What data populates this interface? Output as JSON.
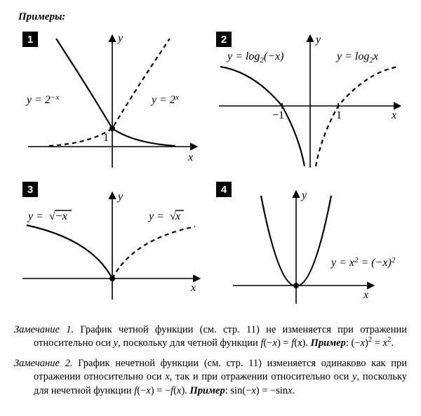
{
  "header": "Примеры:",
  "colors": {
    "fg": "#000000",
    "bg": "#ffffff"
  },
  "panels": {
    "p1": {
      "num": "1",
      "left_label": "y = 2<tspan baseline-shift='5' font-size='11'>−x</tspan>",
      "right_label": "y = 2<tspan baseline-shift='5' font-size='11'>x</tspan>",
      "y_axis": "y",
      "x_axis": "x",
      "tick": "1"
    },
    "p2": {
      "num": "2",
      "left_label": "y = log<tspan baseline-shift='-4' font-size='11'>2</tspan>(−x)",
      "right_label": "y = log<tspan baseline-shift='-4' font-size='11'>2</tspan>x",
      "y_axis": "y",
      "x_axis": "x",
      "tick_neg": "−1",
      "tick_pos": "1"
    },
    "p3": {
      "num": "3",
      "left_label": "y = √−x",
      "right_label": "y = √x",
      "y_axis": "y",
      "x_axis": "x"
    },
    "p4": {
      "num": "4",
      "label": "y = x<tspan baseline-shift='5' font-size='11'>2</tspan> = (−x)<tspan baseline-shift='5' font-size='11'>2</tspan>",
      "y_axis": "y",
      "x_axis": "x"
    }
  },
  "notes": {
    "n1": {
      "head": "Замечание 1.",
      "body": " График четной функции (см. стр. 11) не изменяется при отражении относительно оси <i>y</i>, поскольку для четной функции <i>f</i>(−<i>x</i>) = <i>f</i>(<i>x</i>). ",
      "example_label": "Пример",
      "example": ": (−<i>x</i>)<sup>2</sup> = <i>x</i><sup>2</sup>."
    },
    "n2": {
      "head": "Замечание 2.",
      "body": " График нечетной функции (см. стр. 11) изменяется одинаково как при отражении относительно оси <i>x</i>, так и при отражении относительно оси <i>y</i>, поскольку для нечетной функции <i>f</i>(−<i>x</i>) = −<i>f</i>(<i>x</i>). ",
      "example_label": "Пример",
      "example": ": sin(−<i>x</i>) = −sin<i>x</i>."
    }
  }
}
